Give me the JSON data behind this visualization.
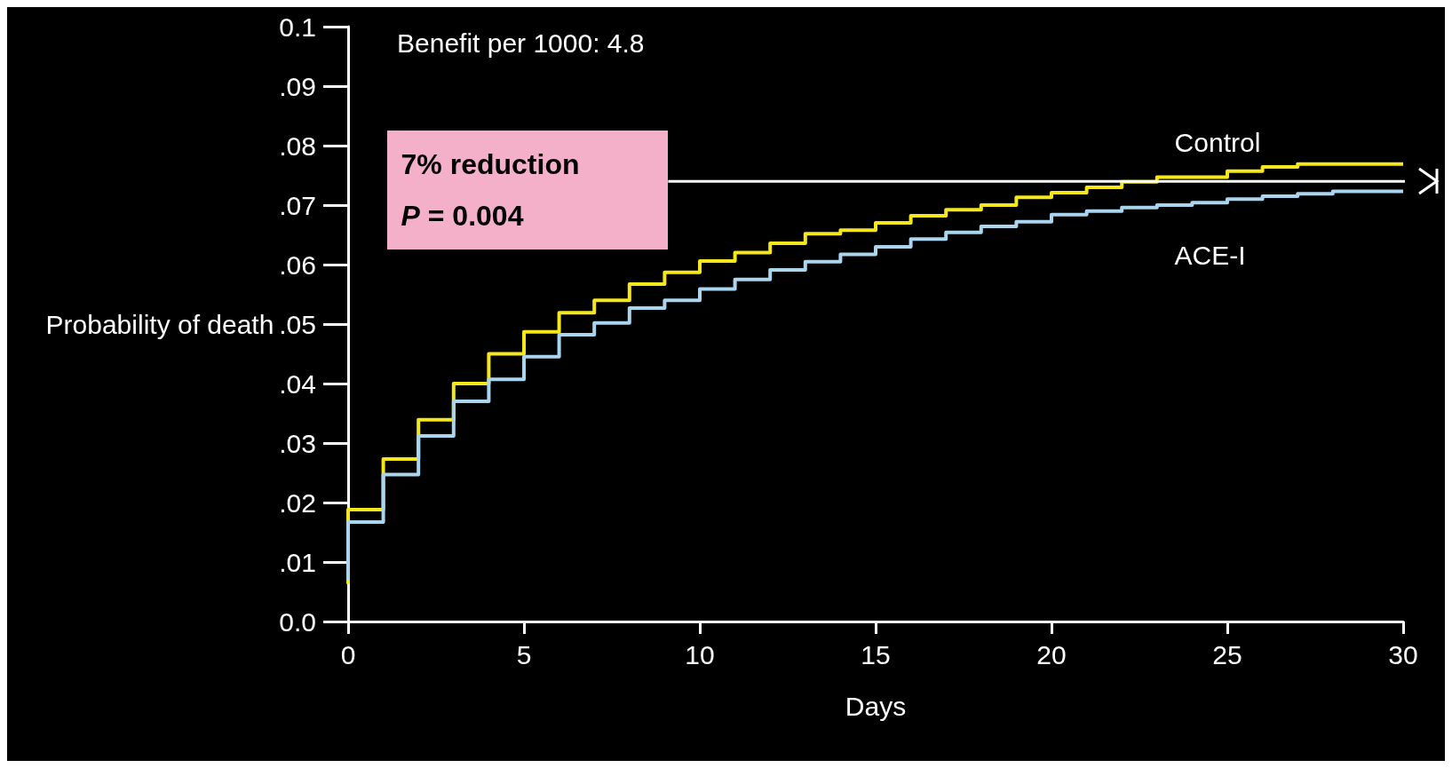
{
  "chart_data": {
    "type": "step",
    "xlabel": "Days",
    "ylabel": "Probability of death",
    "x": [
      0,
      1,
      2,
      3,
      4,
      5,
      6,
      7,
      8,
      9,
      10,
      11,
      12,
      13,
      14,
      15,
      16,
      17,
      18,
      19,
      20,
      21,
      22,
      23,
      24,
      25,
      26,
      27,
      28,
      29,
      30
    ],
    "series": [
      {
        "name": "Control",
        "color": "#f5e71a",
        "values": [
          0.0063,
          0.0188,
          0.0273,
          0.0339,
          0.04,
          0.045,
          0.0487,
          0.0519,
          0.054,
          0.0567,
          0.0587,
          0.0606,
          0.062,
          0.0636,
          0.0652,
          0.0658,
          0.067,
          0.0682,
          0.0692,
          0.07,
          0.0713,
          0.0721,
          0.073,
          0.0739,
          0.0747,
          0.0747,
          0.0757,
          0.0764,
          0.0769,
          0.0769,
          0.0769
        ]
      },
      {
        "name": "ACE-I",
        "color": "#a9d5ef",
        "values": [
          0.007,
          0.0167,
          0.0247,
          0.0312,
          0.037,
          0.0407,
          0.0445,
          0.0482,
          0.0502,
          0.0527,
          0.054,
          0.0559,
          0.0575,
          0.0591,
          0.0605,
          0.0617,
          0.063,
          0.0643,
          0.0654,
          0.0664,
          0.0672,
          0.0684,
          0.069,
          0.0696,
          0.07,
          0.0704,
          0.071,
          0.0715,
          0.0719,
          0.0723,
          0.0723
        ]
      }
    ],
    "xlim": [
      0,
      30
    ],
    "xticks": [
      0,
      5,
      10,
      15,
      20,
      25,
      30
    ],
    "ylim": [
      0,
      0.1
    ],
    "yticks": [
      {
        "value": 0,
        "label": "0.0"
      },
      {
        "value": 0.01,
        "label": ".01"
      },
      {
        "value": 0.02,
        "label": ".02"
      },
      {
        "value": 0.03,
        "label": ".03"
      },
      {
        "value": 0.04,
        "label": ".04"
      },
      {
        "value": 0.05,
        "label": ".05"
      },
      {
        "value": 0.06,
        "label": ".06"
      },
      {
        "value": 0.07,
        "label": ".07"
      },
      {
        "value": 0.08,
        "label": ".08"
      },
      {
        "value": 0.09,
        "label": ".09"
      },
      0.1
    ],
    "annotations": [
      {
        "text": "Benefit per 1000: 4.8"
      },
      {
        "text": "7% reduction"
      },
      {
        "text": "P = 0.004"
      }
    ],
    "ref_lines": [
      {
        "axis": "y",
        "value": 0.074,
        "color": "#ffffff",
        "line_style": "solid"
      }
    ],
    "grid": false,
    "legend": false,
    "marker": "none",
    "line_style": "solid"
  }
}
